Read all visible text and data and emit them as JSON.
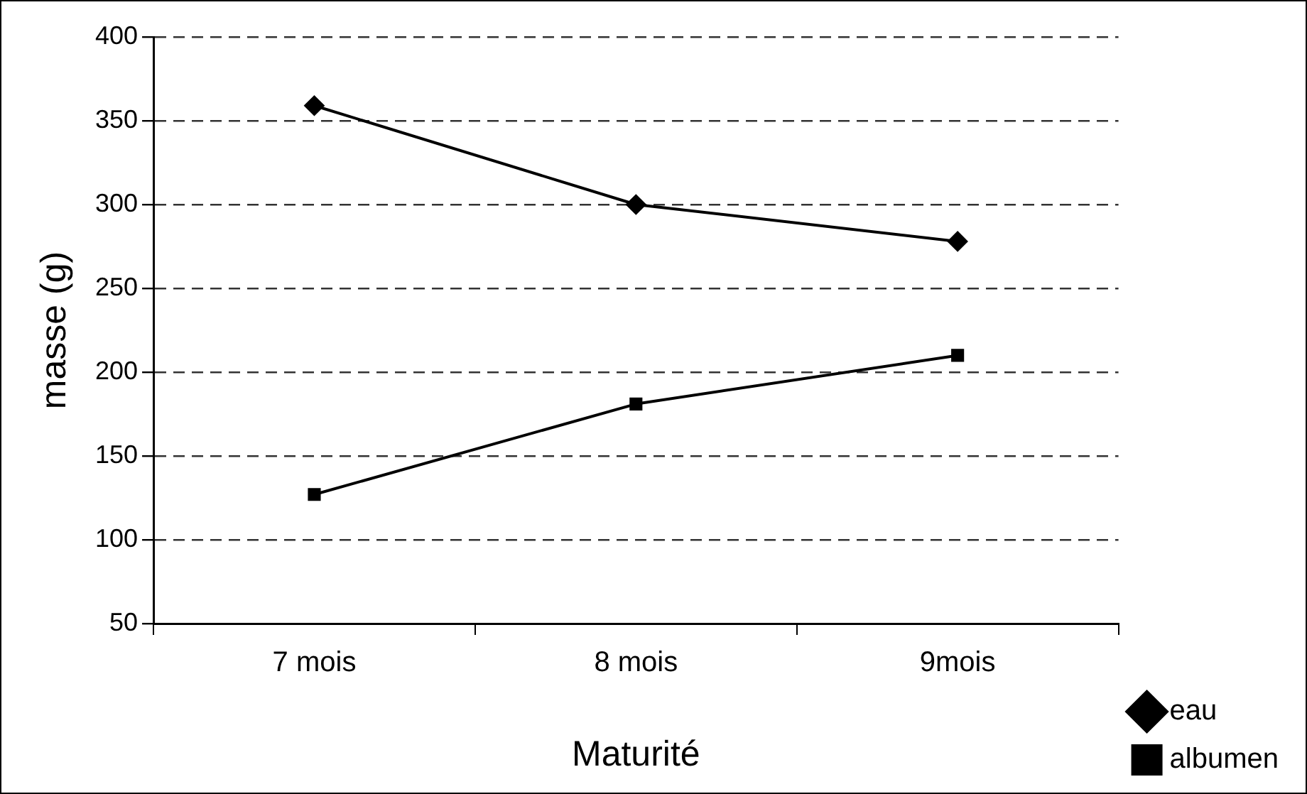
{
  "chart_data": {
    "type": "line",
    "xlabel": "Maturité",
    "ylabel": "masse (g)",
    "categories": [
      "7 mois",
      "8 mois",
      "9mois"
    ],
    "series": [
      {
        "name": "eau",
        "color": "#000000",
        "marker": "diamond",
        "values": [
          359,
          300,
          278
        ]
      },
      {
        "name": "albumen",
        "color": "#000000",
        "marker": "square",
        "values": [
          127,
          181,
          210
        ]
      }
    ],
    "ylim": [
      50,
      400
    ],
    "yticks": [
      50,
      100,
      150,
      200,
      250,
      300,
      350,
      400
    ],
    "grid": "y",
    "legend": "bottom right",
    "line_style": "solid"
  }
}
